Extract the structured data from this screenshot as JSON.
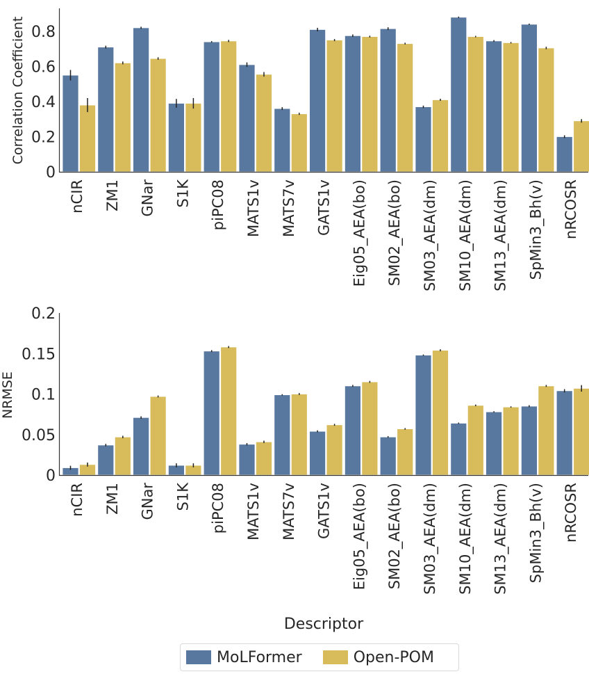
{
  "chart_data": [
    {
      "type": "bar",
      "title": "",
      "xlabel": "",
      "ylabel": "Correlation Coefficient",
      "ylim": [
        0,
        0.93
      ],
      "yticks": [
        0,
        0.2,
        0.4,
        0.6,
        0.8
      ],
      "ytick_labels": [
        "0",
        "0.2",
        "0.4",
        "0.6",
        "0.8"
      ],
      "grid": false,
      "categories": [
        "nCIR",
        "ZM1",
        "GNar",
        "S1K",
        "piPC08",
        "MATS1v",
        "MATS7v",
        "GATS1v",
        "Eig05_AEA(bo)",
        "SM02_AEA(bo)",
        "SM03_AEA(dm)",
        "SM10_AEA(dm)",
        "SM13_AEA(dm)",
        "SpMin3_Bh(v)",
        "nRCOSR"
      ],
      "series": [
        {
          "name": "MoLFormer",
          "color": "#5878a0",
          "values": [
            0.55,
            0.71,
            0.82,
            0.39,
            0.74,
            0.61,
            0.36,
            0.81,
            0.775,
            0.815,
            0.37,
            0.88,
            0.745,
            0.84,
            0.2
          ],
          "errors": [
            0.03,
            0.008,
            0.006,
            0.025,
            0.004,
            0.013,
            0.008,
            0.01,
            0.007,
            0.008,
            0.007,
            0.004,
            0.005,
            0.004,
            0.008
          ]
        },
        {
          "name": "Open-POM",
          "color": "#d8bc5c",
          "values": [
            0.38,
            0.62,
            0.645,
            0.39,
            0.745,
            0.555,
            0.33,
            0.75,
            0.77,
            0.73,
            0.41,
            0.77,
            0.735,
            0.705,
            0.29
          ],
          "errors": [
            0.04,
            0.008,
            0.007,
            0.03,
            0.006,
            0.013,
            0.006,
            0.006,
            0.005,
            0.005,
            0.006,
            0.004,
            0.004,
            0.007,
            0.01
          ]
        }
      ]
    },
    {
      "type": "bar",
      "title": "",
      "xlabel": "Descriptor",
      "ylabel": "NRMSE",
      "ylim": [
        0,
        0.2
      ],
      "yticks": [
        0,
        0.05,
        0.1,
        0.15,
        0.2
      ],
      "ytick_labels": [
        "0",
        "0.05",
        "0.1",
        "0.15",
        "0.2"
      ],
      "grid": false,
      "categories": [
        "nCIR",
        "ZM1",
        "GNar",
        "S1K",
        "piPC08",
        "MATS1v",
        "MATS7v",
        "GATS1v",
        "Eig05_AEA(bo)",
        "SM02_AEA(bo)",
        "SM03_AEA(dm)",
        "SM10_AEA(dm)",
        "SM13_AEA(dm)",
        "SpMin3_Bh(v)",
        "nRCOSR"
      ],
      "series": [
        {
          "name": "MoLFormer",
          "color": "#5878a0",
          "values": [
            0.009,
            0.037,
            0.071,
            0.012,
            0.153,
            0.038,
            0.099,
            0.054,
            0.11,
            0.047,
            0.148,
            0.064,
            0.078,
            0.085,
            0.104
          ],
          "errors": [
            0.0025,
            0.0015,
            0.0015,
            0.0025,
            0.0012,
            0.0015,
            0.0008,
            0.0012,
            0.0012,
            0.001,
            0.0008,
            0.0008,
            0.0008,
            0.0012,
            0.002
          ]
        },
        {
          "name": "Open-POM",
          "color": "#d8bc5c",
          "values": [
            0.013,
            0.047,
            0.097,
            0.012,
            0.158,
            0.041,
            0.1,
            0.062,
            0.115,
            0.057,
            0.154,
            0.086,
            0.084,
            0.11,
            0.107
          ],
          "errors": [
            0.0025,
            0.0015,
            0.0012,
            0.0025,
            0.0012,
            0.0015,
            0.0012,
            0.0012,
            0.0012,
            0.001,
            0.0012,
            0.001,
            0.0008,
            0.0012,
            0.004
          ]
        }
      ]
    }
  ],
  "legend": {
    "position": "bottom-center",
    "items": [
      {
        "label": "MoLFormer",
        "color": "#5878a0"
      },
      {
        "label": "Open-POM",
        "color": "#d8bc5c"
      }
    ]
  }
}
